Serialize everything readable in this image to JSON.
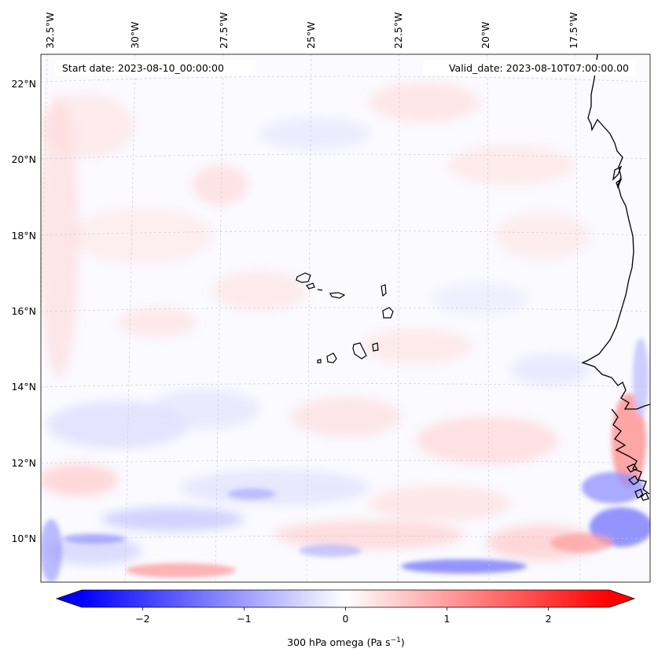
{
  "map": {
    "projection": "lambert-conformal",
    "lon_labels": [
      "32.5°W",
      "30°W",
      "27.5°W",
      "25°W",
      "22.5°W",
      "20°W",
      "17.5°W"
    ],
    "lat_labels": [
      "22°N",
      "20°N",
      "18°N",
      "16°N",
      "14°N",
      "12°N",
      "10°N"
    ],
    "gridlines": true,
    "start_date_text": "Start date: 2023-08-10_00:00:00",
    "valid_date_text": "Valid_date: 2023-08-10T07:00:00.00",
    "coastline_color": "#000000",
    "regions": [
      "West Africa coast",
      "Cape Verde islands"
    ]
  },
  "colorbar": {
    "colormap": "bwr",
    "min": -2.6,
    "max": 2.6,
    "extend": "both",
    "ticks": [
      -2,
      -1,
      0,
      1,
      2
    ],
    "tick_labels": [
      "−2",
      "−1",
      "0",
      "1",
      "2"
    ],
    "label_main": "300 hPa omega (Pa s",
    "label_sup": "−1",
    "label_close": ")",
    "min_color": "#0000ff",
    "mid_color": "#ffffff",
    "max_color": "#ff0000"
  }
}
